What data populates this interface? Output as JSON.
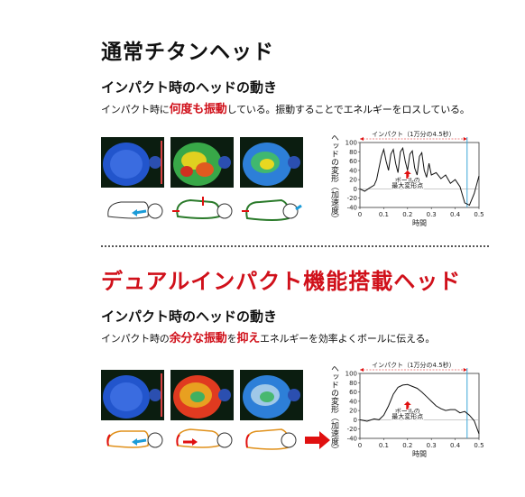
{
  "sections": [
    {
      "title": "通常チタンヘッド",
      "subtitle": "インパクト時のヘッドの動き",
      "desc": {
        "pre": "インパクト時に",
        "hl1": "何度も振動",
        "mid": "している。振動することでエネルギーをロスしている。",
        "hl2": "",
        "post": ""
      },
      "chart_data": {
        "type": "line",
        "title": "インパクト（1万分の4.5秒）",
        "xlabel": "時間",
        "ylabel": "ヘッドの変形（加速度）",
        "annotation": "ボールの最大変形点",
        "annotation_line1": "ボールの",
        "annotation_line2": "最大変形点",
        "xlim": [
          0,
          0.5
        ],
        "ylim": [
          -40,
          100
        ],
        "x_ticks": [
          "0",
          "0.1",
          "0.2",
          "0.3",
          "0.4",
          "0.5"
        ],
        "y_ticks": [
          "100",
          "80",
          "60",
          "40",
          "20",
          "0",
          "-20",
          "-40"
        ],
        "impact_end": 0.45,
        "series": [
          {
            "x": [
              0,
              0.02,
              0.04,
              0.06,
              0.07,
              0.08,
              0.09,
              0.1,
              0.11,
              0.12,
              0.13,
              0.14,
              0.15,
              0.16,
              0.17,
              0.18,
              0.19,
              0.2,
              0.21,
              0.22,
              0.23,
              0.24,
              0.25,
              0.26,
              0.27,
              0.28,
              0.29,
              0.3,
              0.32,
              0.34,
              0.36,
              0.38,
              0.4,
              0.42,
              0.44,
              0.46,
              0.48,
              0.5
            ],
            "y": [
              0,
              -5,
              2,
              8,
              20,
              45,
              70,
              85,
              60,
              40,
              75,
              85,
              55,
              35,
              80,
              88,
              60,
              40,
              75,
              82,
              45,
              30,
              70,
              78,
              40,
              25,
              55,
              30,
              35,
              22,
              30,
              12,
              20,
              5,
              -30,
              -35,
              -10,
              28
            ]
          }
        ]
      }
    },
    {
      "title": "デュアルインパクト機能搭載ヘッド",
      "subtitle": "インパクト時のヘッドの動き",
      "desc": {
        "pre": "インパクト時の",
        "hl1": "余分な振動",
        "mid": "を",
        "hl2": "抑え",
        "post": "エネルギーを効率よくボールに伝える。"
      },
      "chart_data": {
        "type": "line",
        "title": "インパクト（1万分の4.5秒）",
        "xlabel": "時間",
        "ylabel": "ヘッドの変形（加速度）",
        "annotation": "ボールの最大変形点",
        "annotation_line1": "ボールの",
        "annotation_line2": "最大変形点",
        "xlim": [
          0,
          0.5
        ],
        "ylim": [
          -40,
          100
        ],
        "x_ticks": [
          "0",
          "0.1",
          "0.2",
          "0.3",
          "0.4",
          "0.5"
        ],
        "y_ticks": [
          "100",
          "80",
          "60",
          "40",
          "20",
          "0",
          "-20",
          "-40"
        ],
        "impact_end": 0.45,
        "series": [
          {
            "x": [
              0,
              0.03,
              0.06,
              0.08,
              0.1,
              0.12,
              0.14,
              0.16,
              0.18,
              0.2,
              0.22,
              0.24,
              0.26,
              0.28,
              0.3,
              0.32,
              0.34,
              0.36,
              0.38,
              0.4,
              0.42,
              0.44,
              0.46,
              0.48,
              0.5
            ],
            "y": [
              0,
              -3,
              2,
              0,
              10,
              30,
              55,
              70,
              75,
              76,
              72,
              68,
              60,
              50,
              40,
              30,
              24,
              20,
              22,
              22,
              15,
              18,
              10,
              -2,
              -30
            ]
          }
        ]
      }
    }
  ],
  "colors": {
    "accent_red": "#d0101a",
    "impact_line": "#3aa6d8",
    "arrow_blue": "#1a9bd8",
    "arrow_red": "#e01010",
    "outline_green": "#2a7a2a",
    "outline_orange": "#e0901a"
  }
}
